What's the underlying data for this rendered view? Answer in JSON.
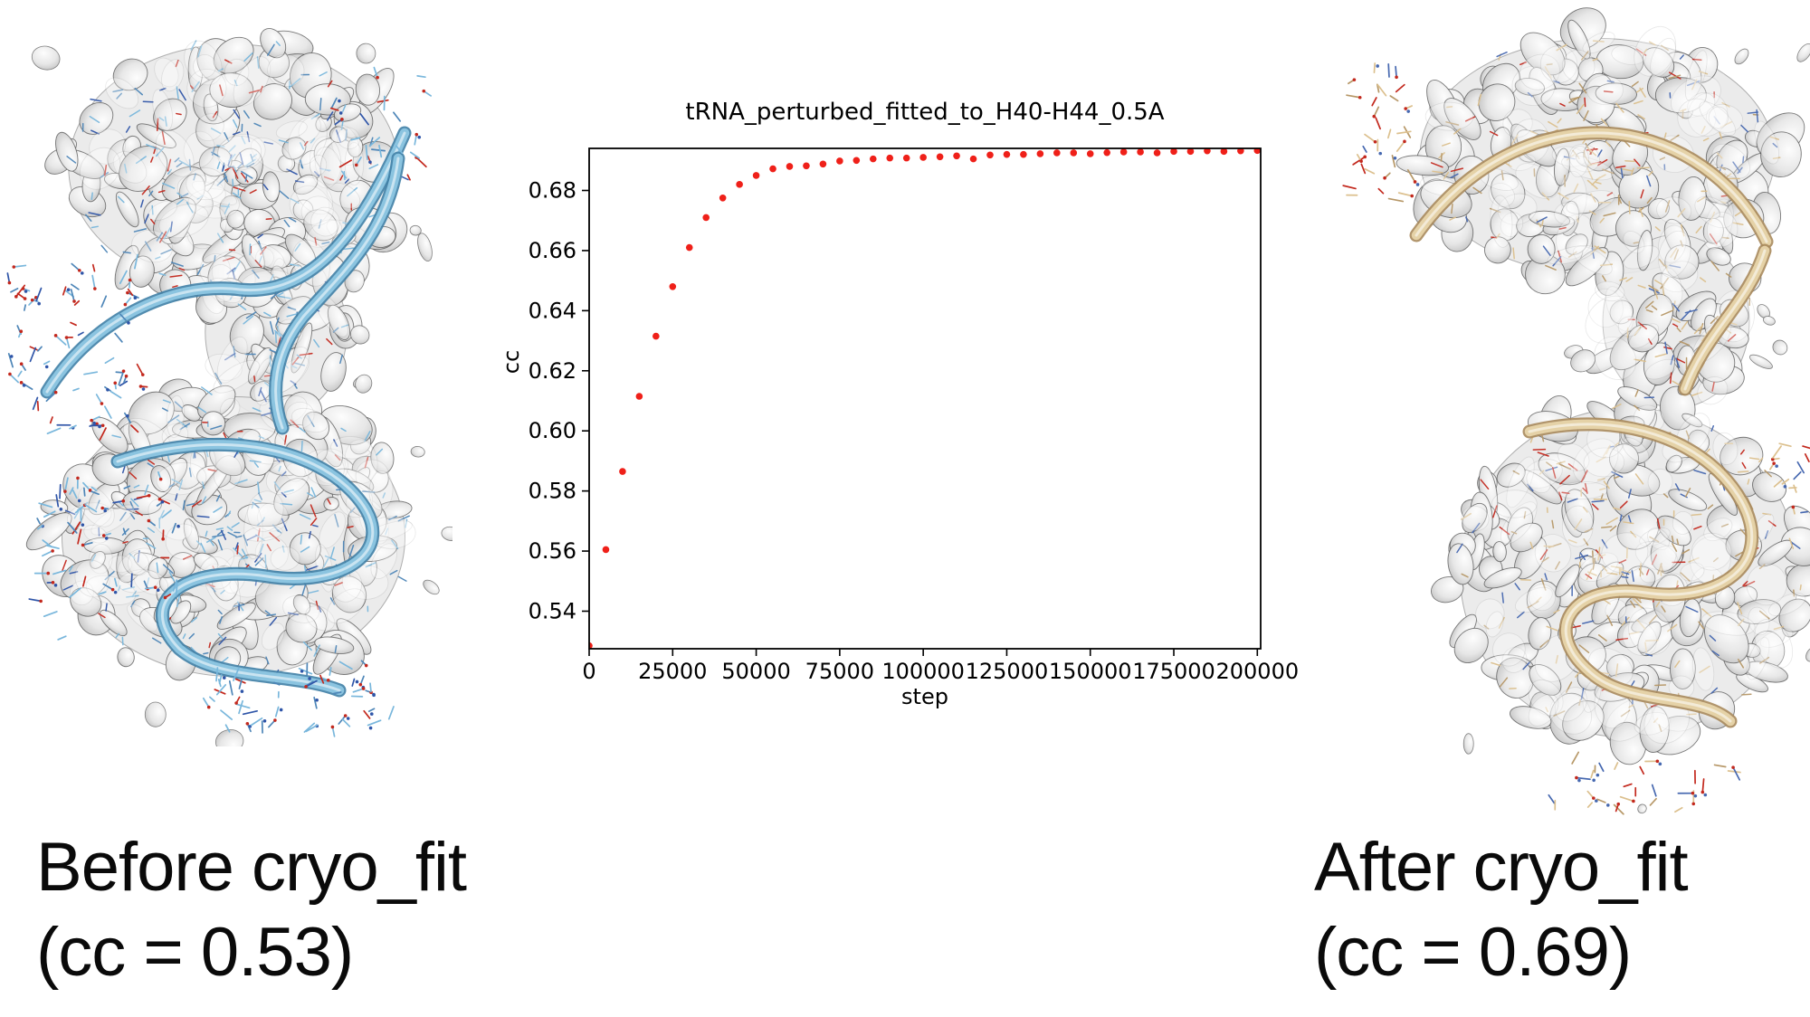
{
  "figure": {
    "background_color": "#ffffff",
    "left_panel": {
      "caption_line1": "Before cryo_fit",
      "caption_line2": "(cc = 0.53)",
      "model_color": "#79b7dc",
      "density_color": "#dcdcdc"
    },
    "right_panel": {
      "caption_line1": "After cryo_fit",
      "caption_line2": "(cc = 0.69)",
      "model_color": "#dcc08e",
      "density_color": "#dcdcdc"
    }
  },
  "chart_data": {
    "type": "scatter",
    "title": "tRNA_perturbed_fitted_to_H40-H44_0.5A",
    "xlabel": "step",
    "ylabel": "cc",
    "marker_color": "#ef2019",
    "marker_size_px": 3.8,
    "grid": false,
    "legend": "none",
    "xlim": [
      0,
      201000
    ],
    "ylim": [
      0.5275,
      0.694
    ],
    "xticks": [
      0,
      25000,
      50000,
      75000,
      100000,
      125000,
      150000,
      175000,
      200000
    ],
    "yticks": [
      0.54,
      0.56,
      0.58,
      0.6,
      0.62,
      0.64,
      0.66,
      0.68
    ],
    "x": [
      0,
      5000,
      10000,
      15000,
      20000,
      25000,
      30000,
      35000,
      40000,
      45000,
      50000,
      55000,
      60000,
      65000,
      70000,
      75000,
      80000,
      85000,
      90000,
      95000,
      100000,
      105000,
      110000,
      115000,
      120000,
      125000,
      130000,
      135000,
      140000,
      145000,
      150000,
      155000,
      160000,
      165000,
      170000,
      175000,
      180000,
      185000,
      190000,
      195000,
      200000
    ],
    "y": [
      0.5285,
      0.5605,
      0.5865,
      0.6115,
      0.6315,
      0.648,
      0.661,
      0.671,
      0.6775,
      0.682,
      0.685,
      0.6872,
      0.688,
      0.6882,
      0.6888,
      0.6898,
      0.69,
      0.6905,
      0.6908,
      0.6908,
      0.691,
      0.6912,
      0.6915,
      0.6905,
      0.6918,
      0.692,
      0.692,
      0.6922,
      0.6925,
      0.6925,
      0.6922,
      0.6926,
      0.6928,
      0.6928,
      0.6925,
      0.693,
      0.693,
      0.6932,
      0.693,
      0.6932,
      0.6933
    ]
  }
}
